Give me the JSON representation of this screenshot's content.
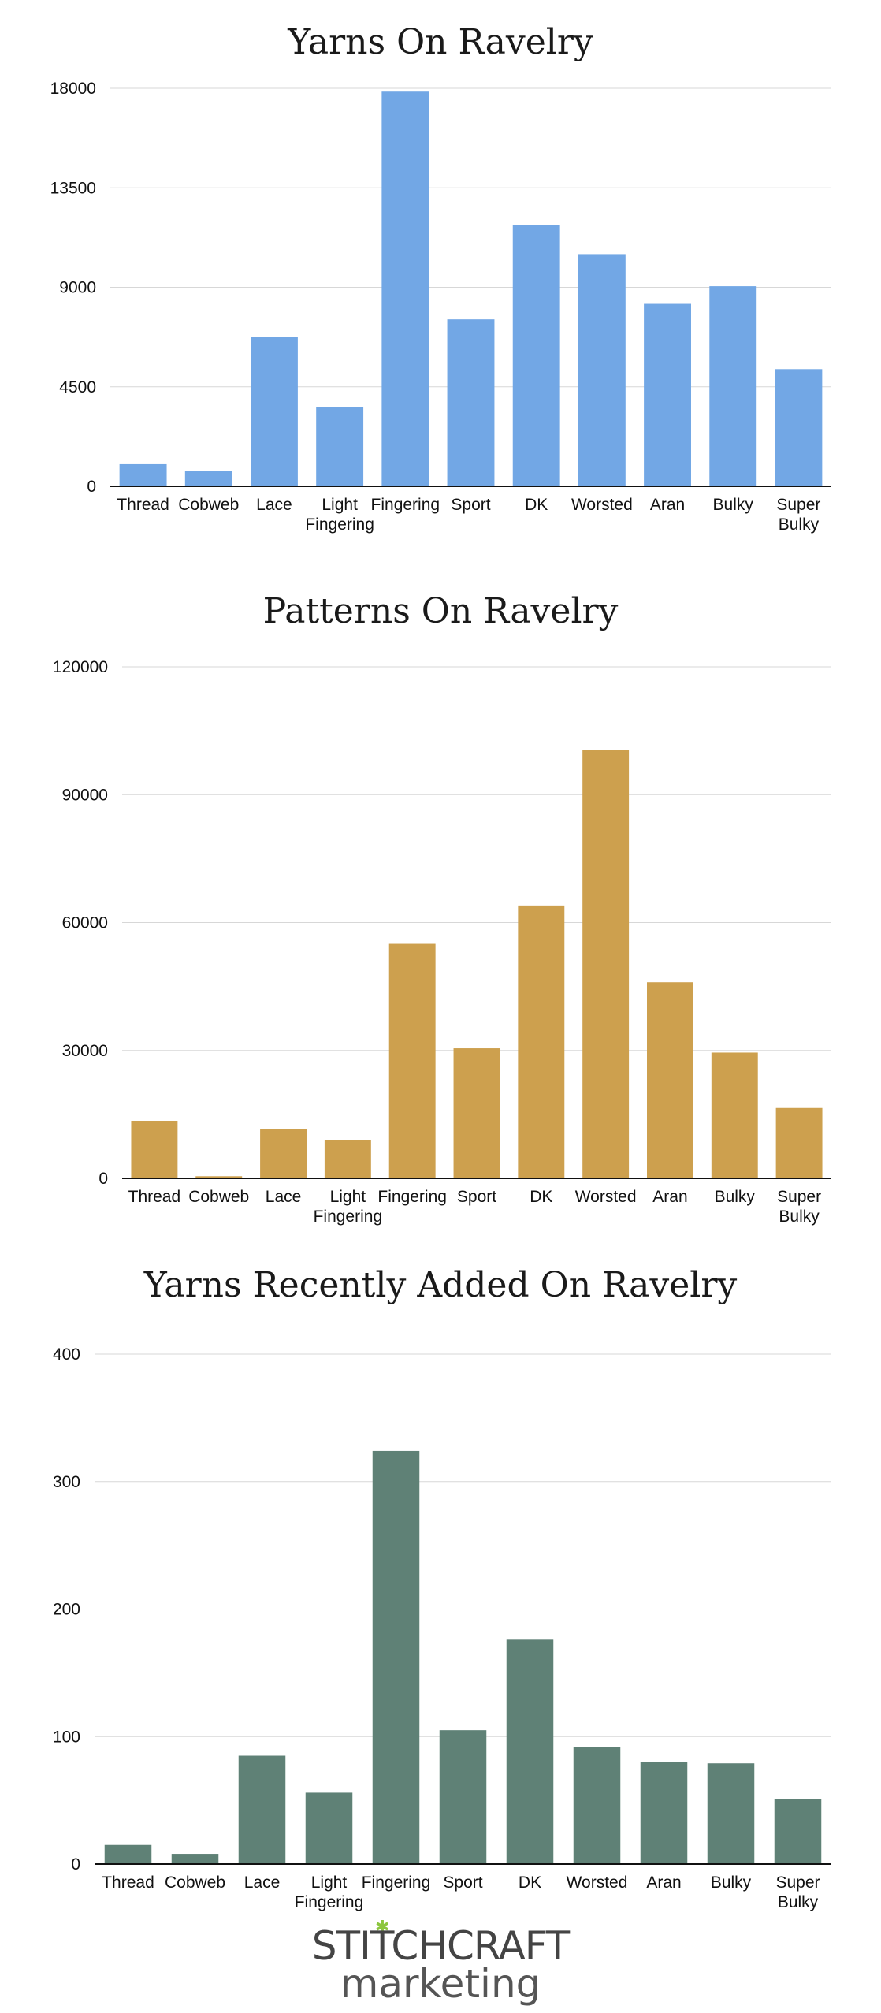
{
  "chart_data": [
    {
      "type": "bar",
      "title": "Yarns On Ravelry",
      "categories": [
        "Thread",
        "Cobweb",
        "Lace",
        "Light\nFingering",
        "Fingering",
        "Sport",
        "DK",
        "Worsted",
        "Aran",
        "Bulky",
        "Super\nBulky"
      ],
      "values": [
        1000,
        700,
        6750,
        3600,
        17850,
        7550,
        11800,
        10500,
        8250,
        9050,
        5300
      ],
      "yticks": [
        0,
        4500,
        9000,
        13500,
        18000
      ],
      "ylim": [
        0,
        18000
      ],
      "color": "#72a7e5",
      "grid": true
    },
    {
      "type": "bar",
      "title": "Patterns On Ravelry",
      "categories": [
        "Thread",
        "Cobweb",
        "Lace",
        "Light\nFingering",
        "Fingering",
        "Sport",
        "DK",
        "Worsted",
        "Aran",
        "Bulky",
        "Super\nBulky"
      ],
      "values": [
        13500,
        500,
        11500,
        9000,
        55000,
        30500,
        64000,
        100500,
        46000,
        29500,
        16500
      ],
      "yticks": [
        0,
        30000,
        60000,
        90000,
        120000
      ],
      "ylim": [
        0,
        120000
      ],
      "color": "#cda04e",
      "grid": true
    },
    {
      "type": "bar",
      "title": "Yarns Recently Added On Ravelry",
      "categories": [
        "Thread",
        "Cobweb",
        "Lace",
        "Light\nFingering",
        "Fingering",
        "Sport",
        "DK",
        "Worsted",
        "Aran",
        "Bulky",
        "Super\nBulky"
      ],
      "values": [
        15,
        8,
        85,
        56,
        324,
        105,
        176,
        92,
        80,
        79,
        51
      ],
      "yticks": [
        0,
        100,
        200,
        300,
        400
      ],
      "ylim": [
        0,
        400
      ],
      "color": "#5f8176",
      "grid": true
    }
  ],
  "logo": {
    "line1": "STITCHCRAFT",
    "line2": "marketing",
    "accent": "#8cc63f"
  }
}
